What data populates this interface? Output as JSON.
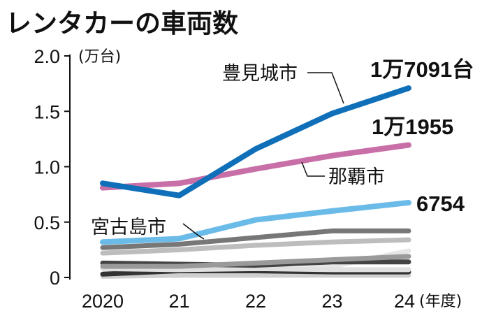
{
  "chart_data": {
    "type": "line",
    "title": "レンタカーの車両数",
    "yunit": "(万台)",
    "xunit": "(年度)",
    "categories": [
      "2020",
      "21",
      "22",
      "23",
      "24"
    ],
    "yticks": [
      "0",
      "0.5",
      "1.0",
      "1.5",
      "2.0"
    ],
    "ylim": [
      0,
      2.0
    ],
    "grid": false,
    "series": [
      {
        "name": "",
        "color": "#e6e6e6",
        "values": [
          0.02,
          0.03,
          0.04,
          0.1,
          0.24
        ]
      },
      {
        "name": "",
        "color": "#cfcfcf",
        "values": [
          0.01,
          0.02,
          0.02,
          0.02,
          0.02
        ]
      },
      {
        "name": "",
        "color": "#333333",
        "values": [
          0.03,
          0.06,
          0.06,
          0.05,
          0.05
        ]
      },
      {
        "name": "",
        "color": "#e0e0e0",
        "values": [
          0.08,
          0.07,
          0.08,
          0.07,
          0.07
        ]
      },
      {
        "name": "",
        "color": "#444444",
        "values": [
          0.13,
          0.12,
          0.11,
          0.14,
          0.14
        ]
      },
      {
        "name": "",
        "color": "#9a9a9a",
        "values": [
          0.1,
          0.1,
          0.13,
          0.16,
          0.19
        ]
      },
      {
        "name": "",
        "color": "#bdbdbd",
        "values": [
          0.22,
          0.25,
          0.29,
          0.32,
          0.34
        ]
      },
      {
        "name": "",
        "color": "#777777",
        "values": [
          0.27,
          0.3,
          0.36,
          0.42,
          0.42
        ]
      },
      {
        "name": "宮古島市",
        "color": "#6bbbe9",
        "values": [
          0.32,
          0.35,
          0.52,
          0.6,
          0.6754
        ],
        "end_label": "6754"
      },
      {
        "name": "那覇市",
        "color": "#c86fa8",
        "values": [
          0.81,
          0.85,
          0.98,
          1.1,
          1.1955
        ],
        "end_label": "1万1955"
      },
      {
        "name": "豊見城市",
        "color": "#0f6fb8",
        "values": [
          0.85,
          0.74,
          1.16,
          1.48,
          1.7091
        ],
        "end_label": "1万7091台"
      }
    ]
  }
}
